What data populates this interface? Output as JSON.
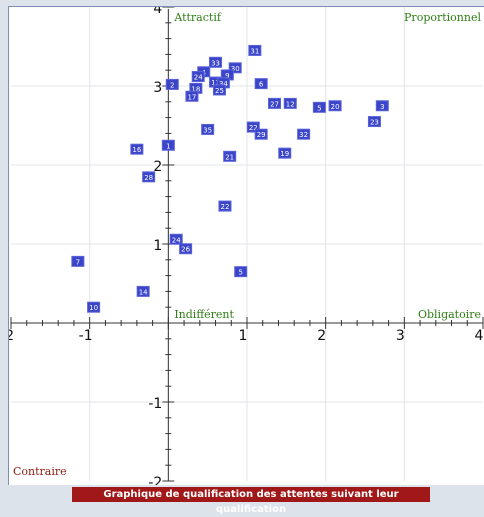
{
  "caption": "Graphique de qualification des attentes suivant leur qualification",
  "chart_data": {
    "type": "scatter",
    "xlim": [
      -2,
      4
    ],
    "ylim": [
      -2,
      4
    ],
    "x_ticks": [
      -2,
      -1,
      1,
      2,
      3,
      4
    ],
    "y_ticks": [
      -2,
      -1,
      1,
      2,
      3,
      4
    ],
    "grid": true,
    "quadrant_labels": [
      {
        "text": "Attractif",
        "position": "top-left-of-center"
      },
      {
        "text": "Proportionnel",
        "position": "top-right"
      },
      {
        "text": "Indifférent",
        "position": "center"
      },
      {
        "text": "Obligatoire",
        "position": "right-of-center"
      },
      {
        "text": "Contraire",
        "position": "bottom-left"
      }
    ],
    "points": [
      {
        "label": "31",
        "x": 1.1,
        "y": 3.45
      },
      {
        "label": "33",
        "x": 0.6,
        "y": 3.3
      },
      {
        "label": "30",
        "x": 0.85,
        "y": 3.23
      },
      {
        "label": "4",
        "x": 0.45,
        "y": 3.18
      },
      {
        "label": "24",
        "x": 0.38,
        "y": 3.12
      },
      {
        "label": "9",
        "x": 0.75,
        "y": 3.14
      },
      {
        "label": "2",
        "x": 0.05,
        "y": 3.02
      },
      {
        "label": "13",
        "x": 0.6,
        "y": 3.05
      },
      {
        "label": "34",
        "x": 0.7,
        "y": 3.04
      },
      {
        "label": "6",
        "x": 1.18,
        "y": 3.03
      },
      {
        "label": "18",
        "x": 0.35,
        "y": 2.97
      },
      {
        "label": "25",
        "x": 0.65,
        "y": 2.95
      },
      {
        "label": "17",
        "x": 0.3,
        "y": 2.87
      },
      {
        "label": "27",
        "x": 1.35,
        "y": 2.78
      },
      {
        "label": "12",
        "x": 1.55,
        "y": 2.78
      },
      {
        "label": "5",
        "x": 1.92,
        "y": 2.73
      },
      {
        "label": "20",
        "x": 2.12,
        "y": 2.75
      },
      {
        "label": "3",
        "x": 2.72,
        "y": 2.75
      },
      {
        "label": "23",
        "x": 2.62,
        "y": 2.55
      },
      {
        "label": "35",
        "x": 0.5,
        "y": 2.45
      },
      {
        "label": "22",
        "x": 1.08,
        "y": 2.48
      },
      {
        "label": "29",
        "x": 1.18,
        "y": 2.39
      },
      {
        "label": "32",
        "x": 1.72,
        "y": 2.39
      },
      {
        "label": "1",
        "x": 0.0,
        "y": 2.25
      },
      {
        "label": "16",
        "x": -0.4,
        "y": 2.2
      },
      {
        "label": "19",
        "x": 1.48,
        "y": 2.15
      },
      {
        "label": "21",
        "x": 0.78,
        "y": 2.11
      },
      {
        "label": "28",
        "x": -0.25,
        "y": 1.85
      },
      {
        "label": "22",
        "x": 0.72,
        "y": 1.48
      },
      {
        "label": "24",
        "x": 0.1,
        "y": 1.06
      },
      {
        "label": "26",
        "x": 0.22,
        "y": 0.94
      },
      {
        "label": "7",
        "x": -1.15,
        "y": 0.78
      },
      {
        "label": "5",
        "x": 0.92,
        "y": 0.65
      },
      {
        "label": "14",
        "x": -0.32,
        "y": 0.4
      },
      {
        "label": "10",
        "x": -0.95,
        "y": 0.2
      }
    ]
  }
}
